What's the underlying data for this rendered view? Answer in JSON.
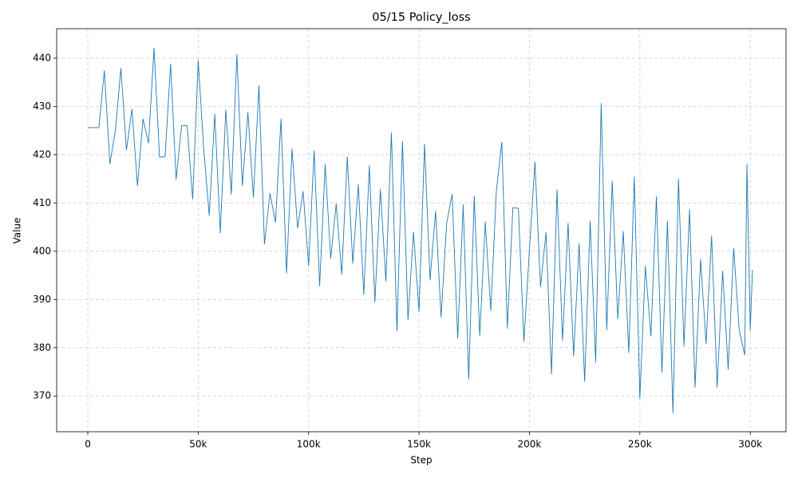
{
  "chart_data": {
    "type": "line",
    "title": "05/15  Policy_loss",
    "x_label": "Step",
    "y_label": "Value",
    "x": [
      0,
      2500,
      5000,
      7500,
      10000,
      12500,
      15000,
      17500,
      20000,
      22500,
      25000,
      27500,
      30000,
      32500,
      35000,
      37500,
      40000,
      42500,
      45000,
      47500,
      50000,
      52500,
      55000,
      57500,
      60000,
      62500,
      65000,
      67500,
      70000,
      72500,
      75000,
      77500,
      80000,
      82500,
      85000,
      87500,
      90000,
      92500,
      95000,
      97500,
      100000,
      102500,
      105000,
      107500,
      110000,
      112500,
      115000,
      117500,
      120000,
      122500,
      125000,
      127500,
      130000,
      132500,
      135000,
      137500,
      140000,
      142500,
      145000,
      147500,
      150000,
      152500,
      155000,
      157500,
      160000,
      162500,
      165000,
      167500,
      170000,
      172500,
      175000,
      177500,
      180000,
      182500,
      185000,
      187500,
      190000,
      192500,
      195000,
      197500,
      200000,
      202500,
      205000,
      207500,
      210000,
      212500,
      215000,
      217500,
      220000,
      222500,
      225000,
      227500,
      230000,
      232500,
      235000,
      237500,
      240000,
      242500,
      245000,
      247500,
      250000,
      252500,
      255000,
      257500,
      260000,
      262500,
      265000,
      267500,
      270000,
      272500,
      275000,
      277500,
      280000,
      282500,
      285000,
      287500,
      290000,
      292500,
      295000,
      297500,
      298500,
      300000,
      301000
    ],
    "values": [
      425.6,
      425.6,
      425.6,
      437.4,
      418.1,
      425.0,
      437.9,
      421.0,
      429.4,
      413.6,
      427.4,
      422.4,
      442.1,
      419.5,
      419.6,
      438.8,
      414.9,
      426.0,
      426.0,
      410.8,
      439.5,
      421.2,
      407.4,
      428.4,
      403.8,
      429.3,
      411.8,
      440.8,
      413.6,
      428.8,
      411.2,
      434.3,
      401.5,
      412.0,
      406.0,
      427.4,
      395.5,
      421.2,
      404.8,
      412.4,
      397.0,
      420.8,
      392.8,
      418.0,
      398.5,
      409.8,
      395.2,
      419.6,
      397.5,
      413.8,
      391.0,
      417.7,
      389.5,
      412.8,
      393.8,
      424.5,
      383.5,
      422.8,
      385.8,
      404.0,
      387.5,
      422.2,
      394.0,
      408.3,
      386.3,
      405.8,
      411.8,
      382.0,
      409.6,
      373.5,
      411.4,
      382.5,
      406.1,
      387.7,
      412.4,
      422.6,
      384.0,
      409.0,
      408.9,
      381.3,
      400.3,
      418.5,
      392.6,
      403.9,
      374.6,
      412.7,
      381.5,
      405.8,
      378.3,
      401.6,
      373.0,
      406.2,
      377.0,
      430.6,
      383.7,
      414.5,
      386.0,
      404.1,
      379.0,
      415.4,
      369.5,
      396.9,
      382.4,
      411.3,
      374.9,
      406.2,
      366.5,
      415.0,
      380.4,
      408.6,
      371.8,
      398.3,
      380.9,
      403.2,
      371.8,
      395.9,
      375.5,
      400.6,
      383.6,
      378.5,
      418.0,
      383.6,
      396.1
    ],
    "color": "#1f77b4",
    "xlim": [
      -14100,
      316200
    ],
    "ylim": [
      362.6,
      446.1
    ],
    "xticks": [
      0,
      {
        "value": 50000,
        "label": "50k"
      },
      {
        "value": 100000,
        "label": "100k"
      },
      {
        "value": 150000,
        "label": "150k"
      },
      {
        "value": 200000,
        "label": "200k"
      },
      {
        "value": 250000,
        "label": "250k"
      },
      {
        "value": 300000,
        "label": "300k"
      }
    ],
    "yticks": [
      370,
      380,
      390,
      400,
      410,
      420,
      430,
      440
    ],
    "grid": true
  }
}
